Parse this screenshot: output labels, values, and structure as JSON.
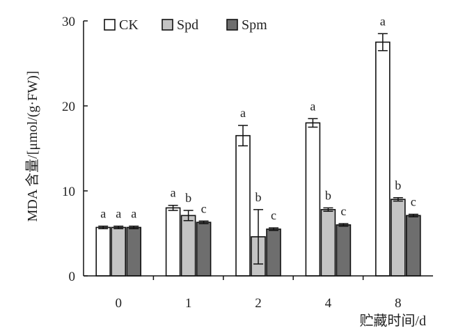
{
  "chart_data": {
    "type": "bar",
    "ylabel": "MDA 含量/[μmol/(g·FW)]",
    "xlabel": "贮藏时间/d",
    "categories": [
      "0",
      "1",
      "2",
      "4",
      "8"
    ],
    "ylim": [
      0,
      30
    ],
    "yticks": [
      0,
      10,
      20,
      30
    ],
    "legend_position": "top-left",
    "series": [
      {
        "name": "CK",
        "color": "#ffffff",
        "values": [
          5.7,
          8.0,
          16.5,
          18.0,
          27.5
        ],
        "errors": [
          0.15,
          0.3,
          1.2,
          0.5,
          1.0
        ],
        "sig": [
          "a",
          "a",
          "a",
          "a",
          "a"
        ]
      },
      {
        "name": "Spd",
        "color": "#c4c4c4",
        "values": [
          5.7,
          7.1,
          4.6,
          7.8,
          9.0
        ],
        "errors": [
          0.15,
          0.6,
          3.2,
          0.2,
          0.2
        ],
        "sig": [
          "a",
          "b",
          "b",
          "b",
          "b"
        ]
      },
      {
        "name": "Spm",
        "color": "#6e6e6e",
        "values": [
          5.7,
          6.3,
          5.5,
          6.0,
          7.1
        ],
        "errors": [
          0.15,
          0.15,
          0.15,
          0.15,
          0.15
        ],
        "sig": [
          "a",
          "c",
          "c",
          "c",
          "c"
        ]
      }
    ]
  }
}
